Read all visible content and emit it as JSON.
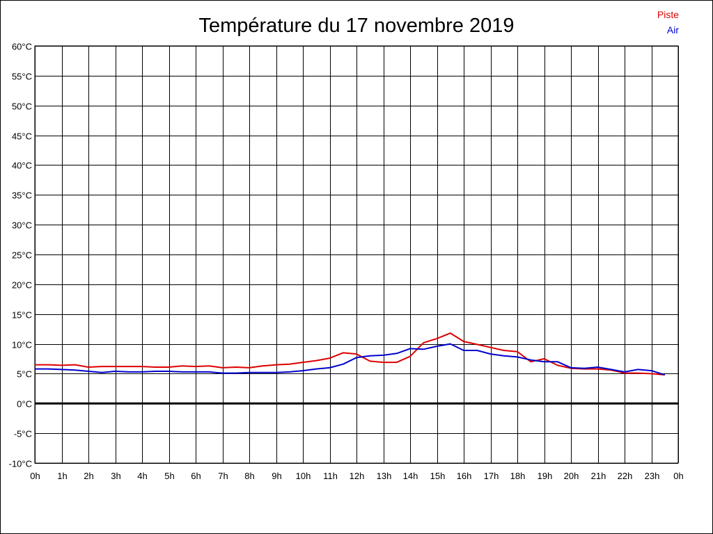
{
  "chart_data": {
    "type": "line",
    "title": "Température du 17 novembre 2019",
    "xlabel": "",
    "ylabel": "",
    "x_ticks": [
      "0h",
      "1h",
      "2h",
      "3h",
      "4h",
      "5h",
      "6h",
      "7h",
      "8h",
      "9h",
      "10h",
      "11h",
      "12h",
      "13h",
      "14h",
      "15h",
      "16h",
      "17h",
      "18h",
      "19h",
      "20h",
      "21h",
      "22h",
      "23h",
      "0h"
    ],
    "y_ticks": [
      "60°C",
      "55°C",
      "50°C",
      "45°C",
      "40°C",
      "35°C",
      "30°C",
      "25°C",
      "20°C",
      "15°C",
      "10°C",
      "5°C",
      "0°C",
      "-5°C",
      "-10°C"
    ],
    "xlim": [
      0,
      24
    ],
    "ylim": [
      -10,
      60
    ],
    "grid": true,
    "zero_line": true,
    "legend_position": "top-right",
    "series": [
      {
        "name": "Piste",
        "color": "#dd0000",
        "x": [
          0,
          0.5,
          1,
          1.5,
          2,
          2.5,
          3,
          3.5,
          4,
          4.5,
          5,
          5.5,
          6,
          6.5,
          7,
          7.5,
          8,
          8.5,
          9,
          9.5,
          10,
          10.5,
          11,
          11.5,
          12,
          12.5,
          13,
          13.5,
          14,
          14.5,
          15,
          15.5,
          16,
          16.5,
          17,
          17.5,
          18,
          18.5,
          19,
          19.5,
          20,
          20.5,
          21,
          21.5,
          22,
          22.5,
          23,
          23.5
        ],
        "y": [
          6.5,
          6.5,
          6.4,
          6.5,
          6.1,
          6.2,
          6.2,
          6.2,
          6.2,
          6.1,
          6.1,
          6.3,
          6.2,
          6.3,
          6.0,
          6.1,
          6.0,
          6.3,
          6.5,
          6.6,
          6.9,
          7.2,
          7.6,
          8.5,
          8.3,
          7.1,
          6.9,
          6.9,
          7.9,
          10.2,
          10.9,
          11.8,
          10.4,
          9.9,
          9.4,
          8.9,
          8.7,
          7.0,
          7.5,
          6.4,
          5.9,
          5.8,
          5.8,
          5.6,
          5.1,
          5.1,
          5.0,
          4.8
        ]
      },
      {
        "name": "Air",
        "color": "#0000cc",
        "x": [
          0,
          0.5,
          1,
          1.5,
          2,
          2.5,
          3,
          3.5,
          4,
          4.5,
          5,
          5.5,
          6,
          6.5,
          7,
          7.5,
          8,
          8.5,
          9,
          9.5,
          10,
          10.5,
          11,
          11.5,
          12,
          12.5,
          13,
          13.5,
          14,
          14.5,
          15,
          15.5,
          16,
          16.5,
          17,
          17.5,
          18,
          18.5,
          19,
          19.5,
          20,
          20.5,
          21,
          21.5,
          22,
          22.5,
          23,
          23.5
        ],
        "y": [
          5.8,
          5.8,
          5.7,
          5.6,
          5.4,
          5.2,
          5.4,
          5.3,
          5.3,
          5.4,
          5.4,
          5.3,
          5.3,
          5.3,
          5.1,
          5.1,
          5.2,
          5.2,
          5.2,
          5.3,
          5.5,
          5.8,
          6.0,
          6.6,
          7.7,
          8.0,
          8.1,
          8.4,
          9.2,
          9.1,
          9.6,
          10.0,
          8.9,
          8.9,
          8.3,
          8.0,
          7.8,
          7.3,
          7.0,
          7.0,
          6.0,
          5.9,
          6.1,
          5.7,
          5.3,
          5.7,
          5.5,
          4.8
        ]
      }
    ]
  }
}
